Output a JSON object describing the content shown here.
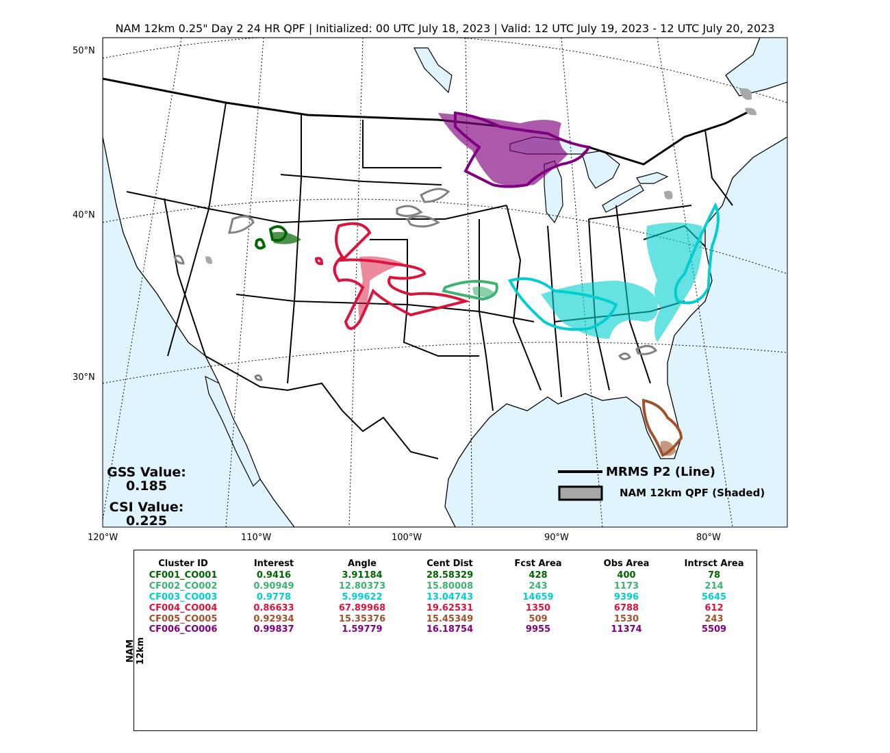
{
  "title": "NAM 12km 0.25\" Day 2 24 HR QPF | Initialized: 00 UTC July 18, 2023 | Valid: 12 UTC July 19, 2023 - 12 UTC July 20, 2023",
  "map": {
    "lat_labels": [
      "50°N",
      "40°N",
      "30°N"
    ],
    "lon_labels": [
      "120°W",
      "110°W",
      "100°W",
      "90°W",
      "80°W"
    ],
    "colors": {
      "ocean": "#dff4fd",
      "land": "#ffffff",
      "observed": "#808080",
      "forecast_shade": "#a8a8a8"
    }
  },
  "stats": {
    "gss_label": "GSS Value:",
    "gss_value": "0.185",
    "csi_label": "CSI Value:",
    "csi_value": "0.225"
  },
  "legend": {
    "line_label": "MRMS P2 (Line)",
    "shaded_label": "NAM 12km QPF (Shaded)"
  },
  "table": {
    "side_label": "NAM 12km",
    "headers": [
      "Cluster ID",
      "Interest",
      "Angle",
      "Cent Dist",
      "Fcst Area",
      "Obs Area",
      "Intrsct Area"
    ],
    "rows": [
      {
        "color": "#006400",
        "cells": [
          "CF001_CO001",
          "0.9416",
          "3.91184",
          "28.58329",
          "428",
          "400",
          "78"
        ]
      },
      {
        "color": "#3cb371",
        "cells": [
          "CF002_CO002",
          "0.90949",
          "12.80373",
          "15.80008",
          "243",
          "1173",
          "214"
        ]
      },
      {
        "color": "#00ced1",
        "cells": [
          "CF003_CO003",
          "0.9778",
          "5.99622",
          "13.04743",
          "14659",
          "9396",
          "5645"
        ]
      },
      {
        "color": "#dc143c",
        "cells": [
          "CF004_CO004",
          "0.86633",
          "67.89968",
          "19.62531",
          "1350",
          "6788",
          "612"
        ]
      },
      {
        "color": "#a0522d",
        "cells": [
          "CF005_CO005",
          "0.92934",
          "15.35376",
          "15.45349",
          "509",
          "1530",
          "243"
        ]
      },
      {
        "color": "#800080",
        "cells": [
          "CF006_CO006",
          "0.99837",
          "1.59779",
          "16.18754",
          "9955",
          "11374",
          "5509"
        ]
      }
    ]
  }
}
